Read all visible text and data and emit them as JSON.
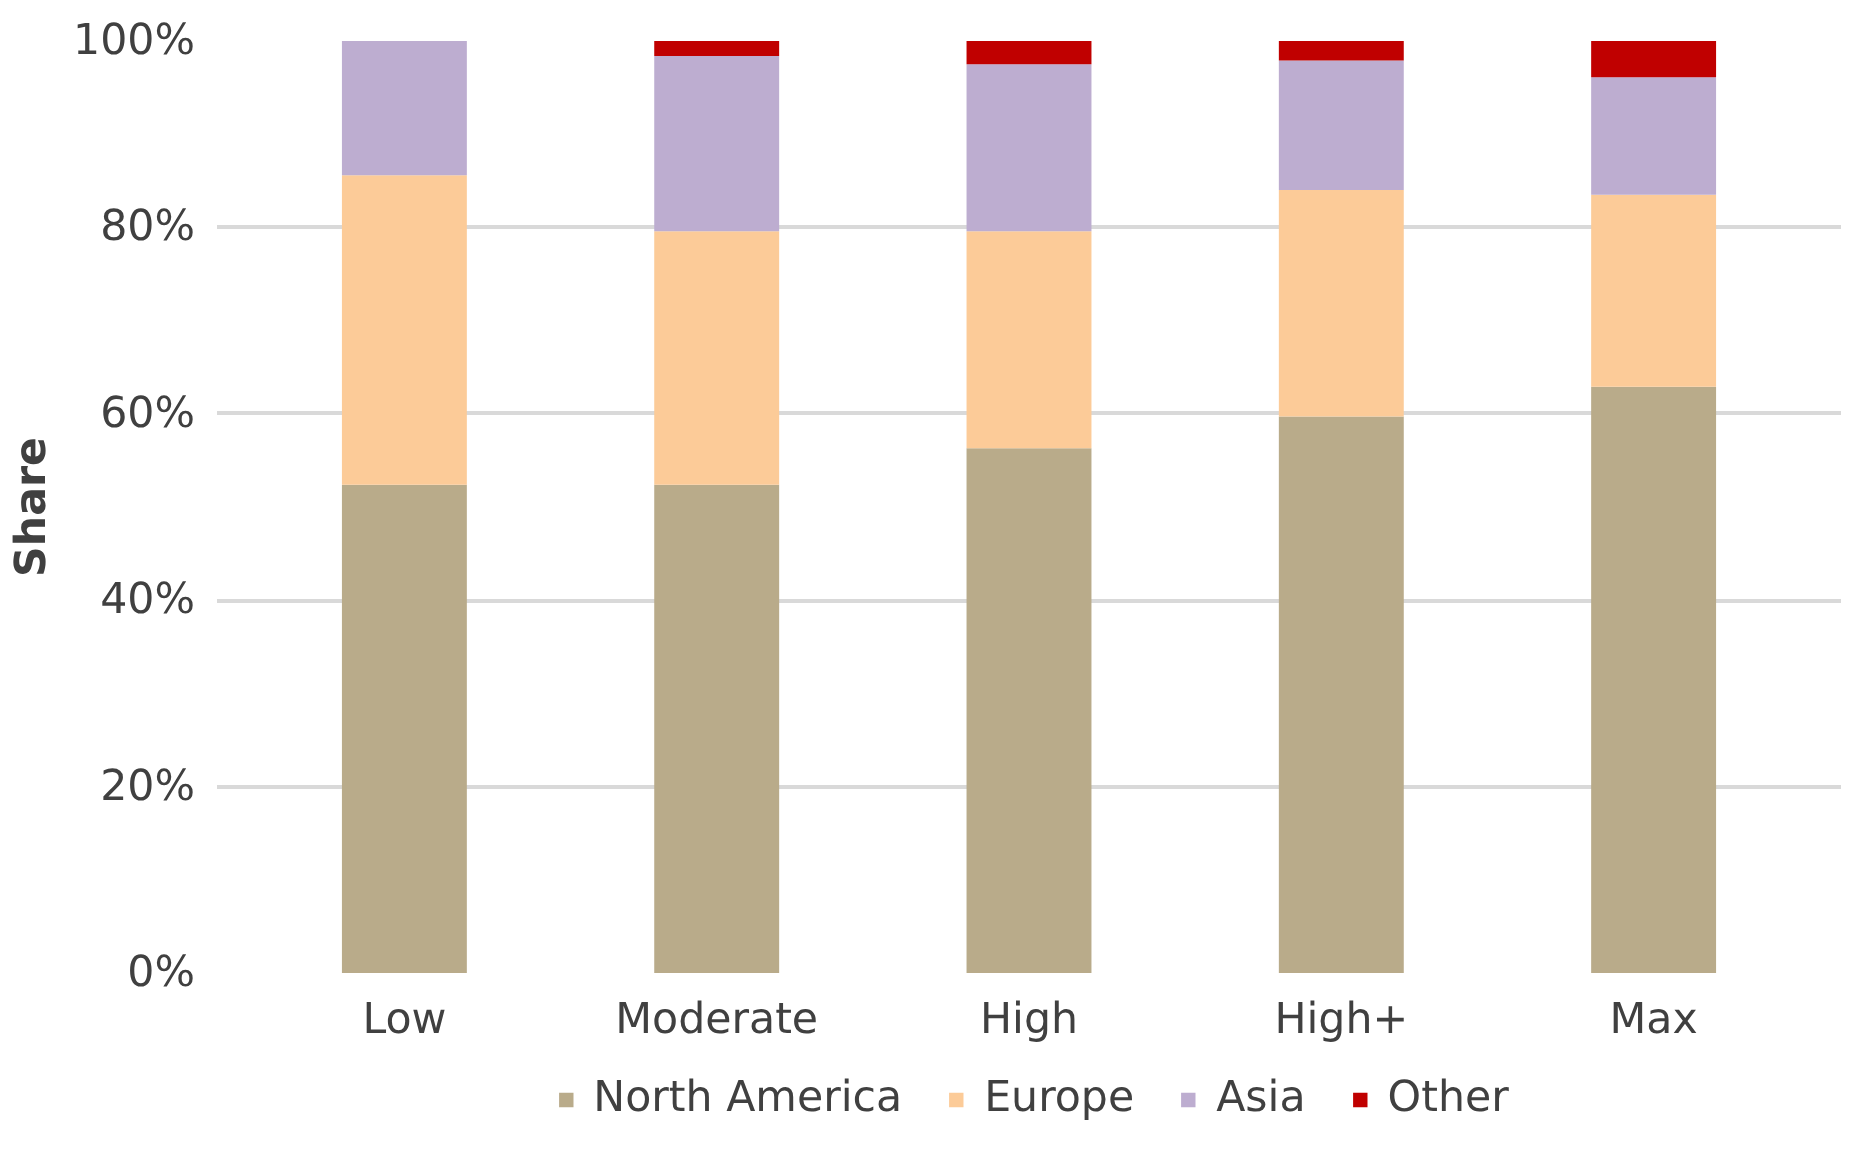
{
  "chart_data": {
    "type": "bar",
    "stacked": true,
    "ylabel": "Share",
    "categories": [
      "Low",
      "Moderate",
      "High",
      "High+",
      "Max"
    ],
    "series": [
      {
        "name": "North America",
        "color": "#b9ab8a",
        "values": [
          52.4,
          52.4,
          56.3,
          59.7,
          62.9
        ]
      },
      {
        "name": "Europe",
        "color": "#fccb98",
        "values": [
          33.2,
          27.2,
          23.3,
          24.3,
          20.6
        ]
      },
      {
        "name": "Asia",
        "color": "#bdadd0",
        "values": [
          14.4,
          18.8,
          17.9,
          13.9,
          12.6
        ]
      },
      {
        "name": "Other",
        "color": "#c00000",
        "values": [
          0,
          1.6,
          2.5,
          2.1,
          3.9
        ]
      }
    ],
    "ylim": [
      0,
      100
    ],
    "yticks": [
      {
        "value": 0,
        "label": "0%"
      },
      {
        "value": 20,
        "label": "20%"
      },
      {
        "value": 40,
        "label": "40%"
      },
      {
        "value": 60,
        "label": "60%"
      },
      {
        "value": 80,
        "label": "80%"
      },
      {
        "value": 100,
        "label": "100%"
      }
    ],
    "grid": "y",
    "legend": "bottom"
  }
}
